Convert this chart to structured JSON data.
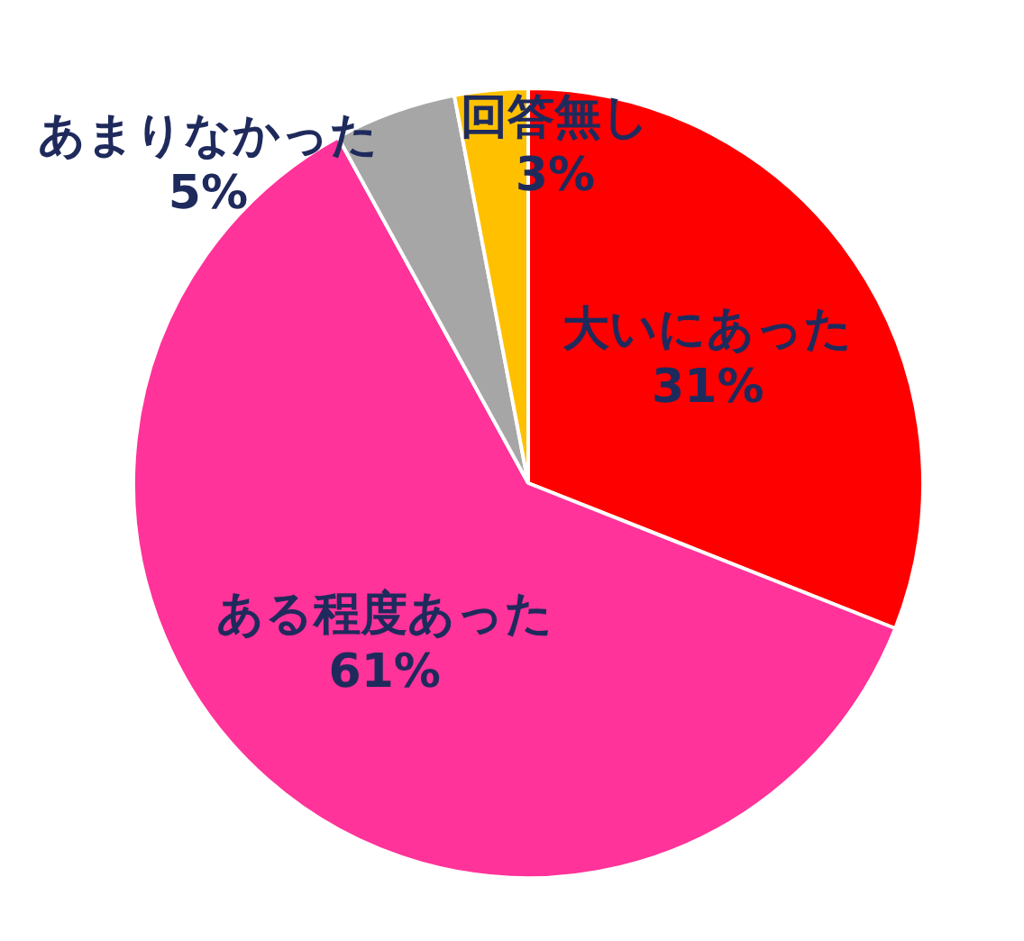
{
  "chart_data": {
    "type": "pie",
    "categories": [
      "大いにあった",
      "ある程度あった",
      "あまりなかった",
      "回答無し"
    ],
    "values": [
      31,
      61,
      5,
      3
    ],
    "value_labels": [
      "31%",
      "61%",
      "5%",
      "3%"
    ],
    "colors": [
      "#ff0000",
      "#ff3399",
      "#a6a6a6",
      "#ffc000"
    ],
    "legend": false
  }
}
